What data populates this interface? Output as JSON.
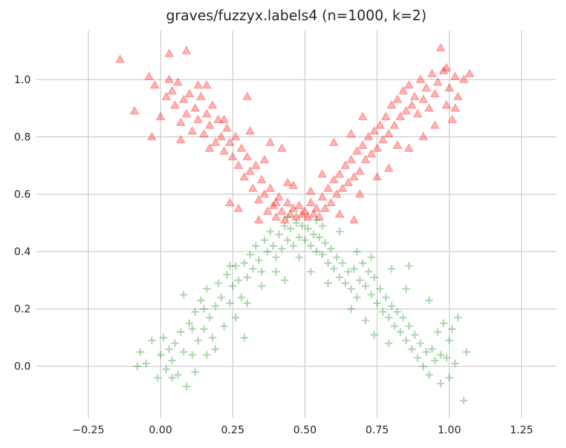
{
  "chart_data": {
    "type": "scatter",
    "title": "graves/fuzzyx.labels4 (n=1000, k=2)",
    "xlabel": "",
    "ylabel": "",
    "xlim": [
      -0.43,
      1.37
    ],
    "ylim": [
      -0.18,
      1.17
    ],
    "xticks": [
      -0.25,
      0.0,
      0.25,
      0.5,
      0.75,
      1.0,
      1.25
    ],
    "xtick_labels": [
      "−0.25",
      "0.00",
      "0.25",
      "0.50",
      "0.75",
      "1.00",
      "1.25"
    ],
    "yticks": [
      0.0,
      0.2,
      0.4,
      0.6,
      0.8,
      1.0
    ],
    "ytick_labels": [
      "0.0",
      "0.2",
      "0.4",
      "0.6",
      "0.8",
      "1.0"
    ],
    "grid": true,
    "legend": "none",
    "series": [
      {
        "marker": "triangle",
        "color": "#ff0000",
        "points": [
          [
            -0.14,
            1.07
          ],
          [
            -0.09,
            0.89
          ],
          [
            -0.04,
            1.01
          ],
          [
            -0.02,
            0.98
          ],
          [
            -0.03,
            0.8
          ],
          [
            0.0,
            0.87
          ],
          [
            0.02,
            0.94
          ],
          [
            0.03,
            1.0
          ],
          [
            0.04,
            0.96
          ],
          [
            0.05,
            0.91
          ],
          [
            0.06,
            0.99
          ],
          [
            0.07,
            0.85
          ],
          [
            0.08,
            0.93
          ],
          [
            0.09,
            0.88
          ],
          [
            0.1,
            0.95
          ],
          [
            0.11,
            0.82
          ],
          [
            0.12,
            0.9
          ],
          [
            0.13,
            0.86
          ],
          [
            0.14,
            0.94
          ],
          [
            0.15,
            0.81
          ],
          [
            0.16,
            0.88
          ],
          [
            0.17,
            0.84
          ],
          [
            0.18,
            0.91
          ],
          [
            0.19,
            0.78
          ],
          [
            0.2,
            0.86
          ],
          [
            0.21,
            0.8
          ],
          [
            0.22,
            0.75
          ],
          [
            0.23,
            0.83
          ],
          [
            0.24,
            0.78
          ],
          [
            0.25,
            0.73
          ],
          [
            0.26,
            0.8
          ],
          [
            0.27,
            0.7
          ],
          [
            0.28,
            0.76
          ],
          [
            0.29,
            0.66
          ],
          [
            0.3,
            0.73
          ],
          [
            0.31,
            0.68
          ],
          [
            0.32,
            0.62
          ],
          [
            0.33,
            0.7
          ],
          [
            0.34,
            0.58
          ],
          [
            0.35,
            0.65
          ],
          [
            0.36,
            0.6
          ],
          [
            0.37,
            0.54
          ],
          [
            0.38,
            0.62
          ],
          [
            0.39,
            0.56
          ],
          [
            0.4,
            0.52
          ],
          [
            0.41,
            0.59
          ],
          [
            0.42,
            0.54
          ],
          [
            0.43,
            0.51
          ],
          [
            0.44,
            0.57
          ],
          [
            0.45,
            0.53
          ],
          [
            0.46,
            0.55
          ],
          [
            0.47,
            0.52
          ],
          [
            0.48,
            0.56
          ],
          [
            0.49,
            0.53
          ],
          [
            0.5,
            0.54
          ],
          [
            0.51,
            0.52
          ],
          [
            0.52,
            0.57
          ],
          [
            0.53,
            0.53
          ],
          [
            0.54,
            0.55
          ],
          [
            0.55,
            0.52
          ],
          [
            0.56,
            0.59
          ],
          [
            0.57,
            0.55
          ],
          [
            0.58,
            0.62
          ],
          [
            0.59,
            0.57
          ],
          [
            0.6,
            0.65
          ],
          [
            0.61,
            0.6
          ],
          [
            0.62,
            0.67
          ],
          [
            0.63,
            0.62
          ],
          [
            0.64,
            0.7
          ],
          [
            0.65,
            0.64
          ],
          [
            0.66,
            0.72
          ],
          [
            0.67,
            0.66
          ],
          [
            0.68,
            0.75
          ],
          [
            0.69,
            0.68
          ],
          [
            0.7,
            0.77
          ],
          [
            0.71,
            0.72
          ],
          [
            0.72,
            0.8
          ],
          [
            0.73,
            0.74
          ],
          [
            0.74,
            0.82
          ],
          [
            0.75,
            0.76
          ],
          [
            0.76,
            0.84
          ],
          [
            0.77,
            0.79
          ],
          [
            0.78,
            0.87
          ],
          [
            0.79,
            0.81
          ],
          [
            0.8,
            0.91
          ],
          [
            0.81,
            0.84
          ],
          [
            0.82,
            0.93
          ],
          [
            0.83,
            0.87
          ],
          [
            0.84,
            0.96
          ],
          [
            0.85,
            0.89
          ],
          [
            0.86,
            0.98
          ],
          [
            0.87,
            0.91
          ],
          [
            0.88,
            0.94
          ],
          [
            0.89,
            0.88
          ],
          [
            0.9,
            1.0
          ],
          [
            0.91,
            0.93
          ],
          [
            0.92,
            0.97
          ],
          [
            0.93,
            0.9
          ],
          [
            0.94,
            1.02
          ],
          [
            0.95,
            0.95
          ],
          [
            0.96,
            0.99
          ],
          [
            0.97,
            1.11
          ],
          [
            0.98,
            1.03
          ],
          [
            0.99,
            0.91
          ],
          [
            1.0,
            0.97
          ],
          [
            1.01,
            0.86
          ],
          [
            1.02,
            1.01
          ],
          [
            1.03,
            0.94
          ],
          [
            1.05,
            1.0
          ],
          [
            1.07,
            1.02
          ],
          [
            0.03,
            1.09
          ],
          [
            0.09,
            1.1
          ],
          [
            0.16,
            0.98
          ],
          [
            0.3,
            0.94
          ],
          [
            0.07,
            0.79
          ],
          [
            0.17,
            0.76
          ],
          [
            0.24,
            0.57
          ],
          [
            0.27,
            0.55
          ],
          [
            0.38,
            0.78
          ],
          [
            0.42,
            0.76
          ],
          [
            0.46,
            0.63
          ],
          [
            0.52,
            0.61
          ],
          [
            0.6,
            0.78
          ],
          [
            0.66,
            0.81
          ],
          [
            0.69,
            0.6
          ],
          [
            0.75,
            0.66
          ],
          [
            0.7,
            0.87
          ],
          [
            0.79,
            0.69
          ],
          [
            0.82,
            0.77
          ],
          [
            0.86,
            0.76
          ],
          [
            0.91,
            0.8
          ],
          [
            0.95,
            0.84
          ],
          [
            0.99,
            1.04
          ],
          [
            1.02,
            0.9
          ],
          [
            0.62,
            0.53
          ],
          [
            0.67,
            0.51
          ],
          [
            0.34,
            0.51
          ],
          [
            0.4,
            0.57
          ],
          [
            0.44,
            0.64
          ],
          [
            0.56,
            0.67
          ],
          [
            0.36,
            0.72
          ],
          [
            0.31,
            0.82
          ],
          [
            0.22,
            0.86
          ],
          [
            0.13,
            0.98
          ]
        ]
      },
      {
        "marker": "plus",
        "color": "#008000",
        "points": [
          [
            -0.07,
            0.05
          ],
          [
            -0.05,
            0.01
          ],
          [
            -0.03,
            0.09
          ],
          [
            -0.01,
            -0.04
          ],
          [
            0.0,
            0.04
          ],
          [
            0.01,
            0.1
          ],
          [
            0.02,
            -0.01
          ],
          [
            0.03,
            0.06
          ],
          [
            0.04,
            0.02
          ],
          [
            0.05,
            0.08
          ],
          [
            0.06,
            -0.03
          ],
          [
            0.07,
            0.12
          ],
          [
            0.08,
            0.05
          ],
          [
            0.09,
            -0.07
          ],
          [
            0.1,
            0.15
          ],
          [
            0.11,
            0.04
          ],
          [
            0.12,
            0.19
          ],
          [
            0.13,
            0.09
          ],
          [
            0.14,
            0.23
          ],
          [
            0.15,
            0.13
          ],
          [
            0.16,
            0.27
          ],
          [
            0.17,
            0.17
          ],
          [
            0.18,
            0.1
          ],
          [
            0.19,
            0.21
          ],
          [
            0.2,
            0.29
          ],
          [
            0.21,
            0.24
          ],
          [
            0.22,
            0.14
          ],
          [
            0.23,
            0.32
          ],
          [
            0.24,
            0.22
          ],
          [
            0.25,
            0.28
          ],
          [
            0.26,
            0.35
          ],
          [
            0.27,
            0.3
          ],
          [
            0.28,
            0.24
          ],
          [
            0.29,
            0.36
          ],
          [
            0.3,
            0.31
          ],
          [
            0.31,
            0.39
          ],
          [
            0.32,
            0.34
          ],
          [
            0.33,
            0.42
          ],
          [
            0.34,
            0.37
          ],
          [
            0.35,
            0.33
          ],
          [
            0.36,
            0.44
          ],
          [
            0.37,
            0.4
          ],
          [
            0.38,
            0.47
          ],
          [
            0.39,
            0.42
          ],
          [
            0.4,
            0.38
          ],
          [
            0.41,
            0.46
          ],
          [
            0.42,
            0.41
          ],
          [
            0.43,
            0.49
          ],
          [
            0.44,
            0.44
          ],
          [
            0.45,
            0.48
          ],
          [
            0.46,
            0.42
          ],
          [
            0.47,
            0.5
          ],
          [
            0.48,
            0.45
          ],
          [
            0.49,
            0.49
          ],
          [
            0.5,
            0.44
          ],
          [
            0.51,
            0.48
          ],
          [
            0.52,
            0.42
          ],
          [
            0.53,
            0.46
          ],
          [
            0.54,
            0.4
          ],
          [
            0.55,
            0.45
          ],
          [
            0.56,
            0.39
          ],
          [
            0.57,
            0.43
          ],
          [
            0.58,
            0.36
          ],
          [
            0.59,
            0.41
          ],
          [
            0.6,
            0.34
          ],
          [
            0.61,
            0.38
          ],
          [
            0.62,
            0.31
          ],
          [
            0.63,
            0.36
          ],
          [
            0.64,
            0.29
          ],
          [
            0.65,
            0.33
          ],
          [
            0.66,
            0.27
          ],
          [
            0.67,
            0.34
          ],
          [
            0.68,
            0.24
          ],
          [
            0.69,
            0.3
          ],
          [
            0.7,
            0.36
          ],
          [
            0.71,
            0.28
          ],
          [
            0.72,
            0.33
          ],
          [
            0.73,
            0.25
          ],
          [
            0.74,
            0.31
          ],
          [
            0.75,
            0.22
          ],
          [
            0.76,
            0.27
          ],
          [
            0.77,
            0.19
          ],
          [
            0.78,
            0.24
          ],
          [
            0.79,
            0.17
          ],
          [
            0.8,
            0.21
          ],
          [
            0.81,
            0.14
          ],
          [
            0.82,
            0.19
          ],
          [
            0.83,
            0.12
          ],
          [
            0.84,
            0.17
          ],
          [
            0.85,
            0.09
          ],
          [
            0.86,
            0.14
          ],
          [
            0.87,
            0.06
          ],
          [
            0.88,
            0.11
          ],
          [
            0.89,
            0.03
          ],
          [
            0.9,
            0.08
          ],
          [
            0.91,
            0.0
          ],
          [
            0.92,
            0.05
          ],
          [
            0.93,
            -0.03
          ],
          [
            0.94,
            0.06
          ],
          [
            0.95,
            0.02
          ],
          [
            0.96,
            0.12
          ],
          [
            0.97,
            0.04
          ],
          [
            0.98,
            0.15
          ],
          [
            0.99,
            0.03
          ],
          [
            1.0,
            0.09
          ],
          [
            1.01,
            0.13
          ],
          [
            1.02,
            0.01
          ],
          [
            1.03,
            0.17
          ],
          [
            1.05,
            -0.12
          ],
          [
            1.06,
            0.05
          ],
          [
            -0.08,
            0.0
          ],
          [
            0.04,
            -0.04
          ],
          [
            0.19,
            0.06
          ],
          [
            0.29,
            0.1
          ],
          [
            0.08,
            0.25
          ],
          [
            0.15,
            0.2
          ],
          [
            0.24,
            0.35
          ],
          [
            0.3,
            0.22
          ],
          [
            0.35,
            0.28
          ],
          [
            0.43,
            0.3
          ],
          [
            0.48,
            0.38
          ],
          [
            0.52,
            0.33
          ],
          [
            0.56,
            0.49
          ],
          [
            0.62,
            0.47
          ],
          [
            0.68,
            0.4
          ],
          [
            0.73,
            0.38
          ],
          [
            0.8,
            0.34
          ],
          [
            0.86,
            0.35
          ],
          [
            0.74,
            0.11
          ],
          [
            0.79,
            0.08
          ],
          [
            0.85,
            0.27
          ],
          [
            0.93,
            0.23
          ],
          [
            0.97,
            -0.06
          ],
          [
            1.0,
            -0.04
          ],
          [
            0.4,
            0.33
          ],
          [
            0.58,
            0.29
          ],
          [
            0.26,
            0.17
          ],
          [
            0.16,
            0.04
          ],
          [
            0.11,
            0.13
          ],
          [
            0.66,
            0.2
          ],
          [
            0.71,
            0.16
          ],
          [
            0.44,
            0.52
          ],
          [
            0.54,
            0.51
          ],
          [
            0.12,
            -0.02
          ]
        ]
      }
    ]
  }
}
